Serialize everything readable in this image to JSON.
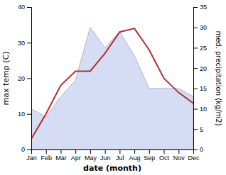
{
  "chart_data": {
    "type": "line",
    "xlabel": "date (month)",
    "ylabel": "max temp (C)",
    "y2label": "med. precipitation (kg/m2)",
    "categories": [
      "Jan",
      "Feb",
      "Mar",
      "Apr",
      "May",
      "Jun",
      "Jul",
      "Aug",
      "Sep",
      "Oct",
      "Nov",
      "Dec"
    ],
    "ylim": [
      0,
      40
    ],
    "yticks": [
      0,
      10,
      20,
      30,
      40
    ],
    "y2lim": [
      0,
      35
    ],
    "y2ticks": [
      0,
      5,
      10,
      15,
      20,
      25,
      30,
      35
    ],
    "grid": false,
    "series": [
      {
        "type": "area",
        "axis": "y2",
        "color": "#c8d0f0",
        "values": [
          10,
          8,
          13,
          17,
          30,
          25,
          29,
          23,
          15,
          15,
          15,
          13
        ]
      },
      {
        "type": "line",
        "color": "#b03030",
        "values": [
          3,
          10,
          18,
          22,
          22,
          27,
          33,
          34,
          28,
          20,
          16,
          13
        ]
      }
    ]
  }
}
